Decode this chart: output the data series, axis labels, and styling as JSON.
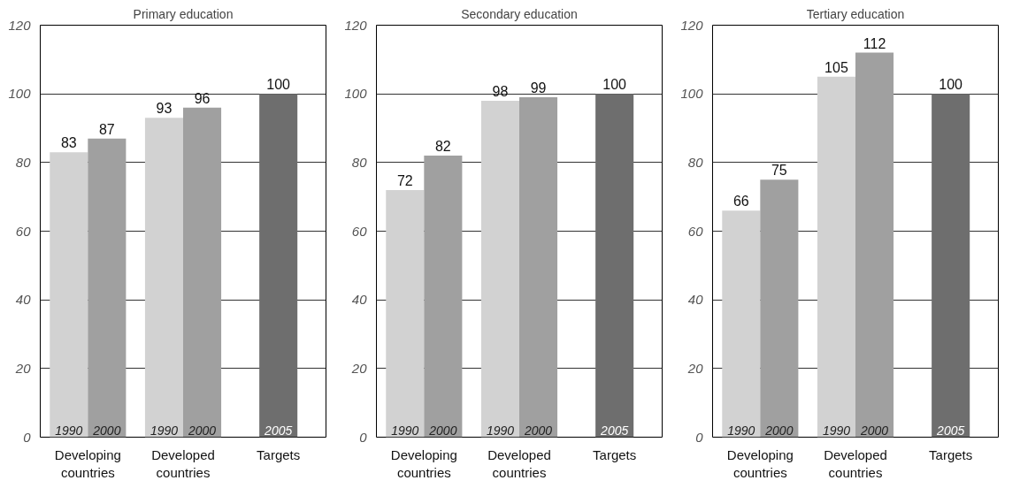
{
  "chart_data": [
    {
      "type": "bar",
      "title": "Primary education",
      "categories": [
        "Developing countries",
        "Developed countries",
        "Targets"
      ],
      "series": [
        {
          "name": "1990",
          "color": "#d2d2d2",
          "values": [
            83,
            93,
            null
          ]
        },
        {
          "name": "2000",
          "color": "#a0a0a0",
          "values": [
            87,
            96,
            null
          ]
        },
        {
          "name": "2005",
          "color": "#6e6e6e",
          "values": [
            null,
            null,
            100
          ]
        }
      ],
      "ylim": [
        0,
        120
      ],
      "yticks": [
        0,
        20,
        40,
        60,
        80,
        100,
        120
      ],
      "grid": "y",
      "data_labels": true
    },
    {
      "type": "bar",
      "title": "Secondary education",
      "categories": [
        "Developing countries",
        "Developed countries",
        "Targets"
      ],
      "series": [
        {
          "name": "1990",
          "color": "#d2d2d2",
          "values": [
            72,
            98,
            null
          ]
        },
        {
          "name": "2000",
          "color": "#a0a0a0",
          "values": [
            82,
            99,
            null
          ]
        },
        {
          "name": "2005",
          "color": "#6e6e6e",
          "values": [
            null,
            null,
            100
          ]
        }
      ],
      "ylim": [
        0,
        120
      ],
      "yticks": [
        0,
        20,
        40,
        60,
        80,
        100,
        120
      ],
      "grid": "y",
      "data_labels": true
    },
    {
      "type": "bar",
      "title": "Tertiary education",
      "categories": [
        "Developing countries",
        "Developed countries",
        "Targets"
      ],
      "series": [
        {
          "name": "1990",
          "color": "#d2d2d2",
          "values": [
            66,
            105,
            null
          ]
        },
        {
          "name": "2000",
          "color": "#a0a0a0",
          "values": [
            75,
            112,
            null
          ]
        },
        {
          "name": "2005",
          "color": "#6e6e6e",
          "values": [
            null,
            null,
            100
          ]
        }
      ],
      "ylim": [
        0,
        120
      ],
      "yticks": [
        0,
        20,
        40,
        60,
        80,
        100,
        120
      ],
      "grid": "y",
      "data_labels": true
    }
  ]
}
